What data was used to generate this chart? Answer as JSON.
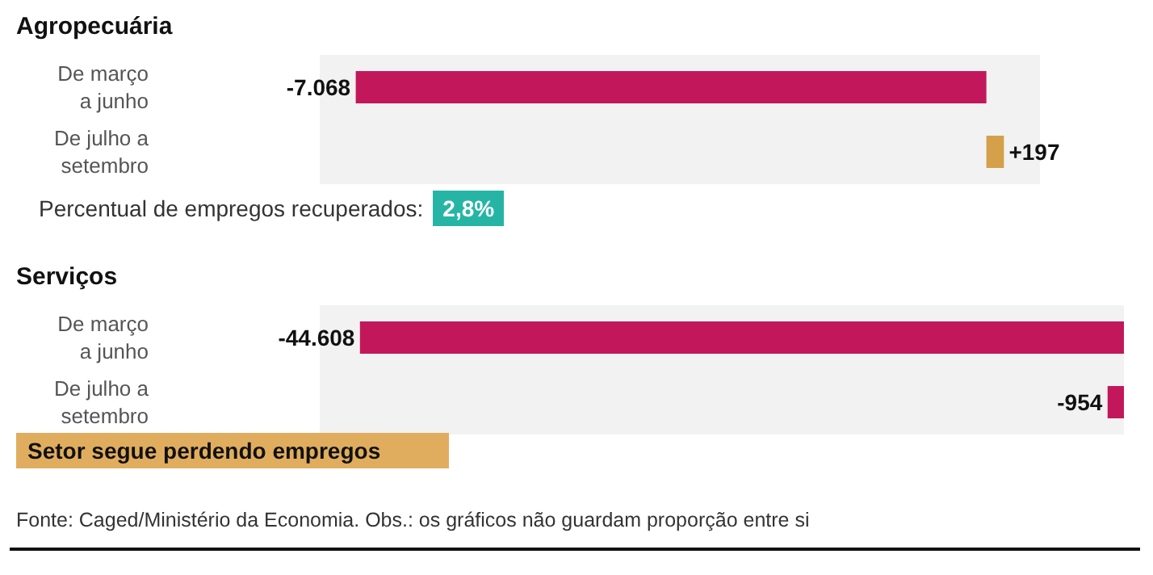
{
  "chart_data": [
    {
      "type": "bar",
      "orientation": "horizontal",
      "title": "Agropecuária",
      "categories": [
        "De março a junho",
        "De julho a setembro"
      ],
      "values": [
        -7068,
        197
      ],
      "colors": [
        "#c2185b",
        "#d4a04a"
      ],
      "value_labels": [
        "-7.068",
        "+197"
      ],
      "annotations": [
        "Percentual de empregos recuperados:",
        "2,8%"
      ]
    },
    {
      "type": "bar",
      "orientation": "horizontal",
      "title": "Serviços",
      "categories": [
        "De março a junho",
        "De julho a setembro"
      ],
      "values": [
        -44608,
        -954
      ],
      "colors": [
        "#c2185b",
        "#c2185b"
      ],
      "value_labels": [
        "-44.608",
        "-954"
      ],
      "annotations": [
        "Setor segue perdendo empregos",
        "Fonte: Caged/Ministério da Economia. Obs.: os gráficos não guardam proporção entre si"
      ]
    }
  ]
}
